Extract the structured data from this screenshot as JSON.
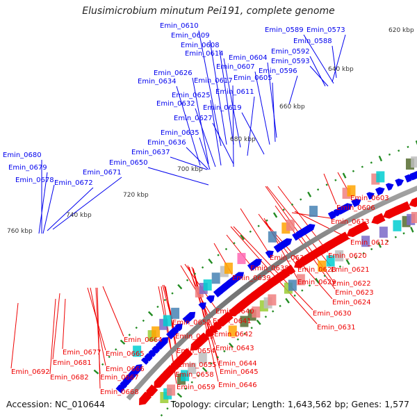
{
  "title": "Elusimicrobium minutum Pei191, complete genome",
  "footer": {
    "accession": "Accession: NC_010644",
    "summary": "Topology: circular; Length: 1,643,562 bp; Genes: 1,577"
  },
  "colors": {
    "forward": "#0000ee",
    "reverse": "#ee0000",
    "backbone": "#808080",
    "tick": "#228b22",
    "kbp_label": "#333333"
  },
  "kbp_labels": [
    "620 kbp",
    "640 kbp",
    "660 kbp",
    "680 kbp",
    "700 kbp",
    "720 kbp",
    "740 kbp",
    "760 kbp"
  ],
  "forward_labels": [
    "Emin_0610",
    "Emin_0609",
    "Emin_0608",
    "Emin_0614",
    "Emin_0604",
    "Emin_0607",
    "Emin_0605",
    "Emin_0626",
    "Emin_0634",
    "Emin_0617",
    "Emin_0611",
    "Emin_0625",
    "Emin_0632",
    "Emin_0619",
    "Emin_0627",
    "Emin_0635",
    "Emin_0636",
    "Emin_0637",
    "Emin_0650",
    "Emin_0671",
    "Emin_0672",
    "Emin_0680",
    "Emin_0679",
    "Emin_0678",
    "Emin_0589",
    "Emin_0573",
    "Emin_0588",
    "Emin_0592",
    "Emin_0593",
    "Emin_0596"
  ],
  "reverse_labels": [
    "Emin_0603",
    "Emin_0606",
    "Emin_0613",
    "Emin_0612",
    "Emin_0620",
    "Emin_0633",
    "Emin_0621",
    "Emin_0638",
    "Emin_0628",
    "Emin_0639",
    "Emin_0629",
    "Emin_0622",
    "Emin_0623",
    "Emin_0624",
    "Emin_0630",
    "Emin_0631",
    "Emin_0640",
    "Emin_0641",
    "Emin_0642",
    "Emin_0643",
    "Emin_0644",
    "Emin_0645",
    "Emin_0646",
    "Emin_0652",
    "Emin_0653",
    "Emin_0654",
    "Emin_0655",
    "Emin_0658",
    "Emin_0659",
    "Emin_0664",
    "Emin_0665",
    "Emin_0666",
    "Emin_0667",
    "Emin_0668",
    "Emin_0677",
    "Emin_0681",
    "Emin_0682",
    "Emin_0692"
  ]
}
